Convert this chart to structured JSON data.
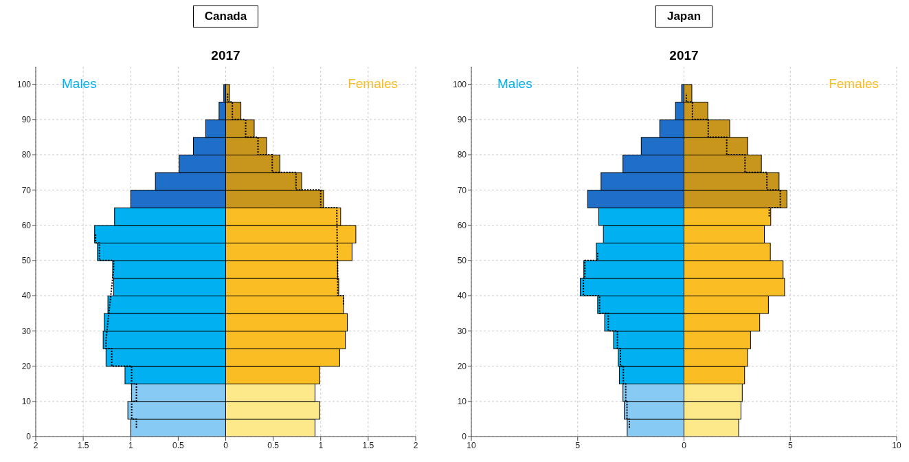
{
  "chart_data": [
    {
      "type": "bar",
      "title": "Canada",
      "subtitle": "2017",
      "orientation": "horizontal",
      "stacked": true,
      "grid": true,
      "x": [
        2.5,
        7.5,
        12.5,
        17.5,
        22.5,
        27.5,
        32.5,
        37.5,
        42.5,
        47.5,
        52.5,
        57.5,
        62.5,
        67.5,
        72.5,
        77.5,
        82.5,
        87.5,
        92.5,
        97.5
      ],
      "xlim": [
        -2,
        2
      ],
      "xticks": [
        {
          "value": -2,
          "label": "2"
        },
        {
          "value": -1.5,
          "label": "1.5"
        },
        {
          "value": -1,
          "label": "1"
        },
        {
          "value": -0.5,
          "label": "0.5"
        },
        0,
        0.5,
        1,
        1.5,
        2
      ],
      "ylim": [
        0,
        105
      ],
      "yticks": [
        0,
        10,
        20,
        30,
        40,
        50,
        60,
        70,
        80,
        90,
        100
      ],
      "series": [
        {
          "name": "Males",
          "color": "#00b0f0",
          "colors": [
            "#87cbf5",
            "#87cbf5",
            "#87cbf5",
            "#00b0f0",
            "#00b0f0",
            "#00b0f0",
            "#00b0f0",
            "#00b0f0",
            "#00b0f0",
            "#00b0f0",
            "#00b0f0",
            "#00b0f0",
            "#00b0f0",
            "#1f6fc8",
            "#1f6fc8",
            "#1f6fc8",
            "#1f6fc8",
            "#1f6fc8",
            "#1f6fc8",
            "#1f6fc8"
          ],
          "values": [
            -1.0,
            -1.03,
            -0.99,
            -1.06,
            -1.26,
            -1.29,
            -1.28,
            -1.24,
            -1.18,
            -1.19,
            -1.35,
            -1.38,
            -1.17,
            -1.0,
            -0.74,
            -0.49,
            -0.34,
            -0.21,
            -0.07,
            -0.02
          ]
        },
        {
          "name": "Females",
          "color": "#fbbd24",
          "colors": [
            "#fde98a",
            "#fde98a",
            "#fde98a",
            "#fbbd24",
            "#fbbd24",
            "#fbbd24",
            "#fbbd24",
            "#fbbd24",
            "#fbbd24",
            "#fbbd24",
            "#fbbd24",
            "#fbbd24",
            "#fbbd24",
            "#c8961c",
            "#c8961c",
            "#c8961c",
            "#c8961c",
            "#c8961c",
            "#c8961c",
            "#c8961c"
          ],
          "values": [
            0.94,
            0.99,
            0.94,
            0.99,
            1.2,
            1.26,
            1.28,
            1.24,
            1.19,
            1.18,
            1.33,
            1.37,
            1.21,
            1.03,
            0.8,
            0.57,
            0.43,
            0.3,
            0.16,
            0.04
          ]
        },
        {
          "type": "step",
          "line_style": "dotted",
          "color": "#000000",
          "values": [
            -0.94,
            -0.99,
            -0.94,
            -0.99,
            -1.2,
            -1.26,
            null,
            null,
            null,
            -1.18,
            -1.33,
            -1.37,
            null,
            null,
            null,
            null,
            null,
            null,
            null,
            null
          ]
        },
        {
          "type": "step",
          "line_style": "dotted",
          "color": "#000000",
          "values": [
            null,
            null,
            null,
            null,
            null,
            null,
            null,
            1.24,
            1.18,
            null,
            null,
            null,
            1.17,
            1.0,
            0.74,
            0.49,
            0.34,
            0.21,
            0.07,
            0.02
          ]
        }
      ]
    },
    {
      "type": "bar",
      "title": "Japan",
      "subtitle": "2017",
      "orientation": "horizontal",
      "stacked": true,
      "grid": true,
      "x": [
        2.5,
        7.5,
        12.5,
        17.5,
        22.5,
        27.5,
        32.5,
        37.5,
        42.5,
        47.5,
        52.5,
        57.5,
        62.5,
        67.5,
        72.5,
        77.5,
        82.5,
        87.5,
        92.5,
        97.5
      ],
      "xlim": [
        -10,
        10
      ],
      "xticks": [
        {
          "value": -10,
          "label": "10"
        },
        {
          "value": -5,
          "label": "5"
        },
        0,
        5,
        10
      ],
      "ylim": [
        0,
        105
      ],
      "yticks": [
        0,
        10,
        20,
        30,
        40,
        50,
        60,
        70,
        80,
        90,
        100
      ],
      "series": [
        {
          "name": "Males",
          "color": "#00b0f0",
          "colors": [
            "#87cbf5",
            "#87cbf5",
            "#87cbf5",
            "#00b0f0",
            "#00b0f0",
            "#00b0f0",
            "#00b0f0",
            "#00b0f0",
            "#00b0f0",
            "#00b0f0",
            "#00b0f0",
            "#00b0f0",
            "#00b0f0",
            "#1f6fc8",
            "#1f6fc8",
            "#1f6fc8",
            "#1f6fc8",
            "#1f6fc8",
            "#1f6fc8",
            "#1f6fc8"
          ],
          "values": [
            -2.67,
            -2.81,
            -2.87,
            -3.04,
            -3.09,
            -3.31,
            -3.73,
            -4.06,
            -4.88,
            -4.71,
            -4.12,
            -3.79,
            -4.01,
            -4.53,
            -3.9,
            -2.87,
            -2.01,
            -1.14,
            -0.4,
            -0.11
          ]
        },
        {
          "name": "Females",
          "color": "#fbbd24",
          "colors": [
            "#fde98a",
            "#fde98a",
            "#fde98a",
            "#fbbd24",
            "#fbbd24",
            "#fbbd24",
            "#fbbd24",
            "#fbbd24",
            "#fbbd24",
            "#fbbd24",
            "#fbbd24",
            "#fbbd24",
            "#fbbd24",
            "#c8961c",
            "#c8961c",
            "#c8961c",
            "#c8961c",
            "#c8961c",
            "#c8961c",
            "#c8961c"
          ],
          "values": [
            2.57,
            2.68,
            2.74,
            2.85,
            2.99,
            3.13,
            3.56,
            3.97,
            4.73,
            4.66,
            4.06,
            3.78,
            4.08,
            4.84,
            4.47,
            3.64,
            3.0,
            2.15,
            1.12,
            0.37
          ]
        },
        {
          "type": "step",
          "line_style": "dotted",
          "color": "#000000",
          "values": [
            -2.57,
            -2.68,
            -2.74,
            -2.85,
            -2.99,
            -3.13,
            -3.56,
            -3.97,
            -4.73,
            -4.66,
            -4.06,
            null,
            null,
            null,
            null,
            null,
            null,
            null,
            null,
            null
          ]
        },
        {
          "type": "step",
          "line_style": "dotted",
          "color": "#000000",
          "values": [
            null,
            null,
            null,
            null,
            null,
            null,
            null,
            null,
            null,
            null,
            null,
            null,
            4.01,
            4.53,
            3.9,
            2.87,
            2.01,
            1.14,
            0.4,
            0.11
          ]
        }
      ]
    }
  ]
}
